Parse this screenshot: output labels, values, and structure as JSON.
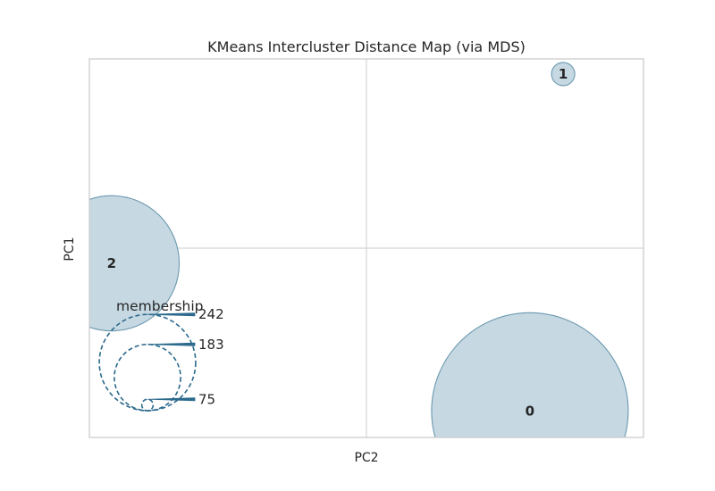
{
  "chart_data": {
    "type": "scatter",
    "title": "KMeans Intercluster Distance Map (via MDS)",
    "xlabel": "PC2",
    "ylabel": "PC1",
    "grid": true,
    "xlim": [
      -1,
      1
    ],
    "ylim": [
      -1,
      1
    ],
    "clusters": [
      {
        "label": "0",
        "x": 0.59,
        "y": -0.86,
        "size": 242
      },
      {
        "label": "1",
        "x": 0.71,
        "y": 0.92,
        "size": 75
      },
      {
        "label": "2",
        "x": -0.92,
        "y": -0.08,
        "size": 183
      }
    ],
    "legend": {
      "title": "membership",
      "values": [
        75,
        183,
        242
      ],
      "placement": "lower-left"
    },
    "colors": {
      "fill": "#c6d8e2",
      "edge": "#6b98af",
      "legend": "#2b6a8c",
      "grid": "#d4d4d4",
      "frame": "#cccccc"
    }
  }
}
